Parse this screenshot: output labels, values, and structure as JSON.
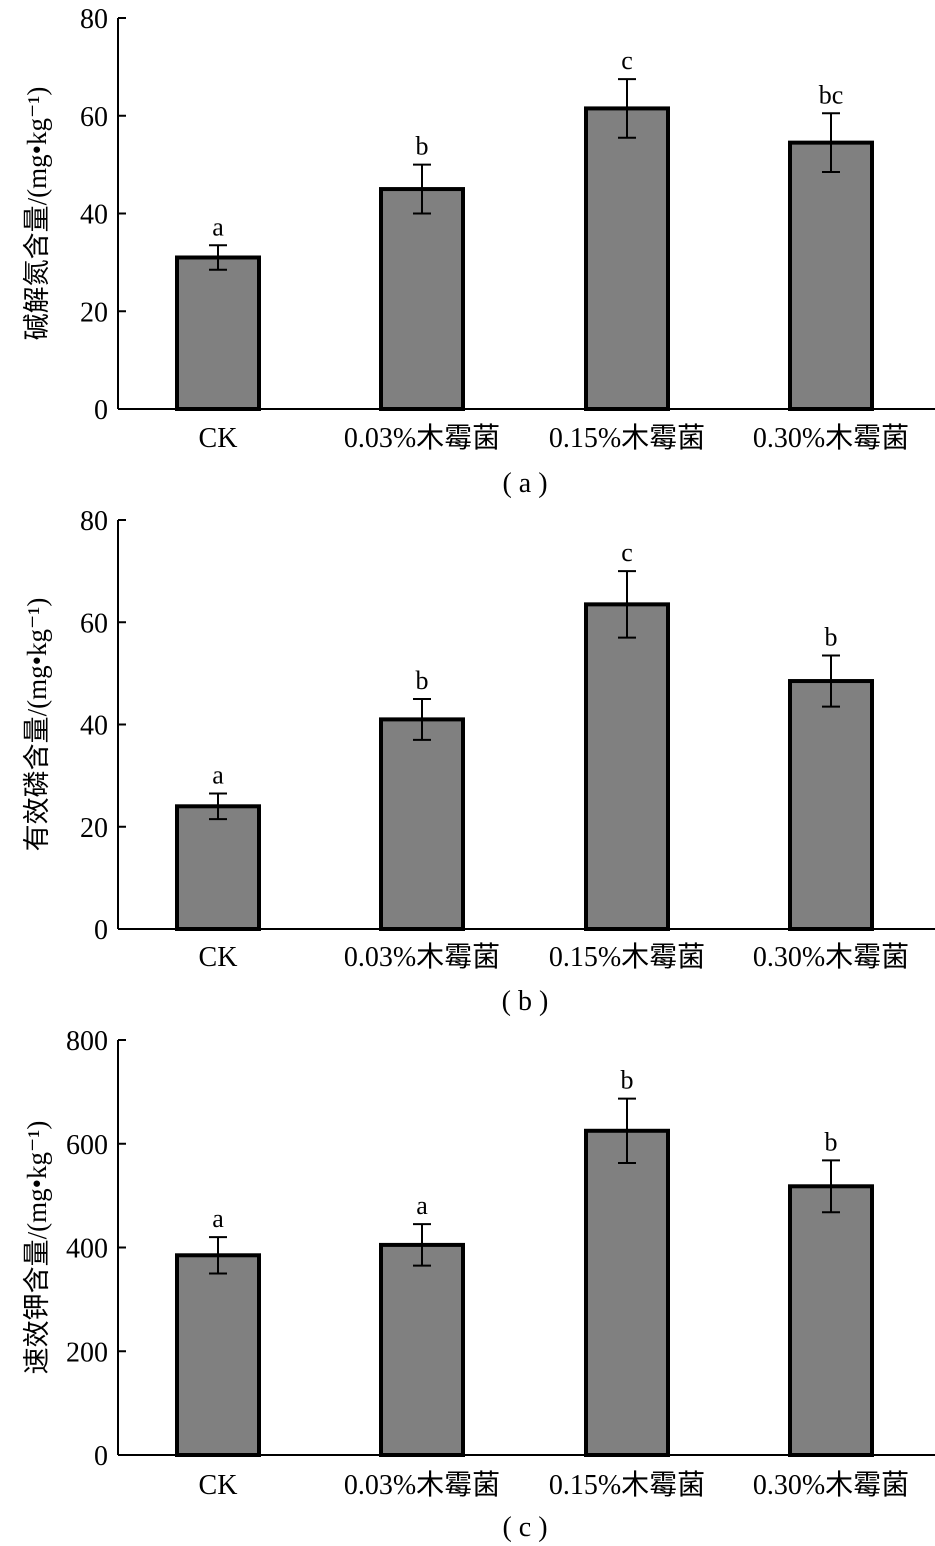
{
  "chart_data": [
    {
      "type": "bar",
      "panel_label": "( a )",
      "ylabel": "碱解氮含量/(mg•kg⁻¹)",
      "xlabel": "",
      "categories": [
        "CK",
        "0.03%木霉菌",
        "0.15%木霉菌",
        "0.30%木霉菌"
      ],
      "values": [
        31,
        45,
        61.5,
        54.5
      ],
      "errors": [
        2.5,
        5,
        6,
        6
      ],
      "significance": [
        "a",
        "b",
        "c",
        "bc"
      ],
      "ylim": [
        0,
        80
      ],
      "yticks": [
        0,
        20,
        40,
        60,
        80
      ],
      "bar_color": "#808080"
    },
    {
      "type": "bar",
      "panel_label": "( b )",
      "ylabel": "有效磷含量/(mg•kg⁻¹)",
      "xlabel": "",
      "categories": [
        "CK",
        "0.03%木霉菌",
        "0.15%木霉菌",
        "0.30%木霉菌"
      ],
      "values": [
        24,
        41,
        63.5,
        48.5
      ],
      "errors": [
        2.5,
        4,
        6.5,
        5
      ],
      "significance": [
        "a",
        "b",
        "c",
        "b"
      ],
      "ylim": [
        0,
        80
      ],
      "yticks": [
        0,
        20,
        40,
        60,
        80
      ],
      "bar_color": "#808080"
    },
    {
      "type": "bar",
      "panel_label": "( c )",
      "ylabel": "速效钾含量/(mg•kg⁻¹)",
      "xlabel": "",
      "categories": [
        "CK",
        "0.03%木霉菌",
        "0.15%木霉菌",
        "0.30%木霉菌"
      ],
      "values": [
        385,
        405,
        625,
        518
      ],
      "errors": [
        35,
        40,
        62,
        50
      ],
      "significance": [
        "a",
        "a",
        "b",
        "b"
      ],
      "ylim": [
        0,
        800
      ],
      "yticks": [
        0,
        200,
        400,
        600,
        800
      ],
      "bar_color": "#808080"
    }
  ]
}
